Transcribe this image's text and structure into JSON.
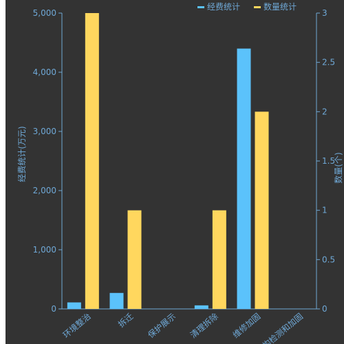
{
  "chart_data": {
    "type": "bar",
    "categories": [
      "环境整治",
      "拆迁",
      "保护展示",
      "清理拆除",
      "维修加固",
      "结构检测和加固"
    ],
    "series": [
      {
        "name": "经费统计",
        "axis": "left",
        "color": "#5bc2fb",
        "values": [
          110,
          270,
          0,
          60,
          4400,
          0
        ]
      },
      {
        "name": "数量统计",
        "axis": "right",
        "color": "#ffd75e",
        "values": [
          3,
          1,
          0,
          1,
          2,
          0
        ]
      }
    ],
    "y_left": {
      "label": "经费统计(万元)",
      "range": [
        0,
        5000
      ],
      "ticks": [
        "0",
        "1,000",
        "2,000",
        "3,000",
        "4,000",
        "5,000"
      ]
    },
    "y_right": {
      "label": "数量(个)",
      "range": [
        0,
        3
      ],
      "ticks": [
        "0",
        "0.5",
        "1",
        "1.5",
        "2",
        "2.5",
        "3"
      ]
    },
    "legend_position": "top-right",
    "grid": false
  }
}
